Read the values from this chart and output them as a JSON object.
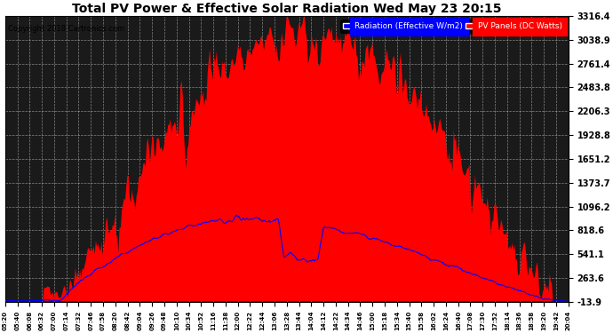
{
  "title": "Total PV Power & Effective Solar Radiation Wed May 23 20:15",
  "copyright": "Copyright 2018 Cartronics.com",
  "legend_radiation": "Radiation (Effective W/m2)",
  "legend_pv": "PV Panels (DC Watts)",
  "bg_color": "#ffffff",
  "plot_bg_color": "#1a1a1a",
  "grid_color": "#aaaaaa",
  "radiation_color": "#0000ff",
  "pv_color": "#ff0000",
  "yticks": [
    3316.4,
    3038.9,
    2761.4,
    2483.8,
    2206.3,
    1928.8,
    1651.2,
    1373.7,
    1096.2,
    818.6,
    541.1,
    263.6,
    -13.9
  ],
  "ymin": -13.9,
  "ymax": 3316.4,
  "xtick_labels": [
    "05:20",
    "05:40",
    "06:08",
    "06:32",
    "07:00",
    "07:14",
    "07:32",
    "07:46",
    "07:58",
    "08:20",
    "08:42",
    "09:04",
    "09:26",
    "09:48",
    "10:10",
    "10:34",
    "10:52",
    "11:16",
    "11:38",
    "12:00",
    "12:22",
    "12:44",
    "13:06",
    "13:28",
    "13:44",
    "14:04",
    "14:12",
    "14:22",
    "14:34",
    "14:46",
    "15:00",
    "15:18",
    "15:34",
    "15:40",
    "15:58",
    "16:02",
    "16:24",
    "16:40",
    "17:08",
    "17:30",
    "17:52",
    "18:14",
    "18:36",
    "18:58",
    "19:20",
    "19:42",
    "20:04"
  ]
}
